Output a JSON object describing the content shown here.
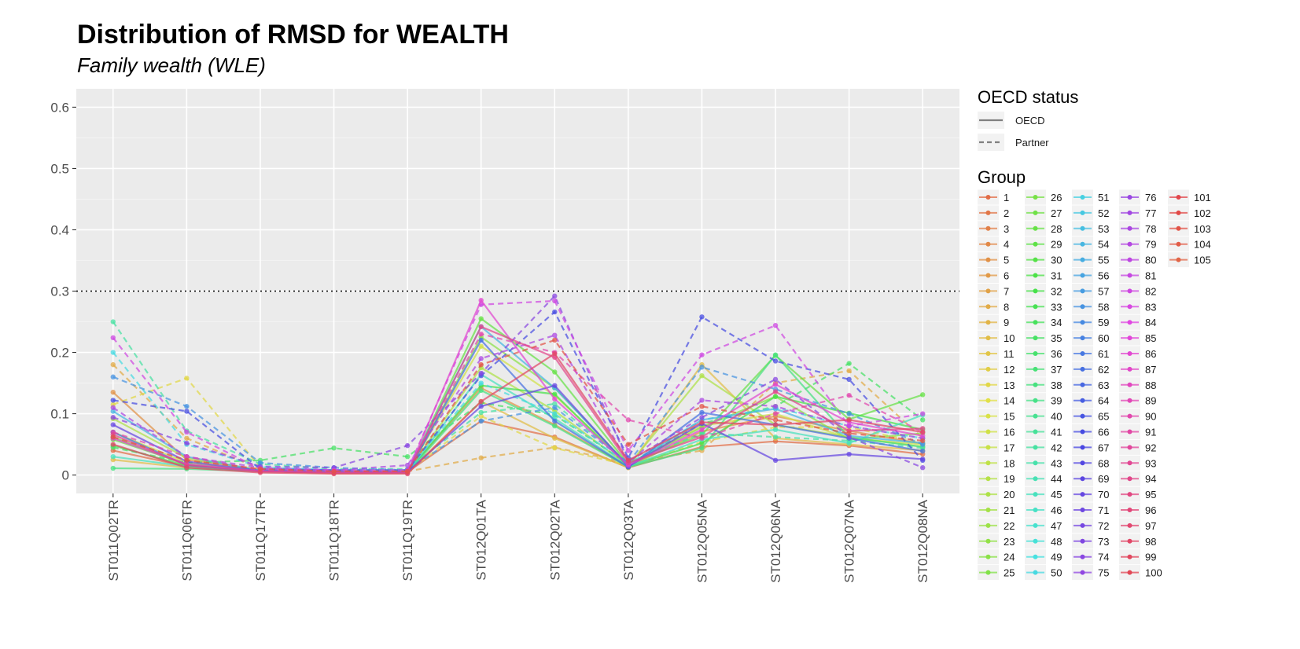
{
  "chart_data": {
    "type": "line",
    "title": "Distribution of RMSD for WEALTH",
    "subtitle": "Family wealth (WLE)",
    "xlabel": "",
    "ylabel": "",
    "categories": [
      "ST011Q02TR",
      "ST011Q06TR",
      "ST011Q17TR",
      "ST011Q18TR",
      "ST011Q19TR",
      "ST012Q01TA",
      "ST012Q02TA",
      "ST012Q03TA",
      "ST012Q05NA",
      "ST012Q06NA",
      "ST012Q07NA",
      "ST012Q08NA"
    ],
    "ylim": [
      -0.03,
      0.63
    ],
    "yticks": [
      0,
      0.1,
      0.2,
      0.3,
      0.4,
      0.5,
      0.6
    ],
    "ytick_labels": [
      "0",
      "0.1",
      "0.2",
      "0.3",
      "0.4",
      "0.5",
      "0.6"
    ],
    "reference_line": {
      "y": 0.3,
      "style": "dotted"
    },
    "grid": true,
    "legend_position": "right",
    "linetype_legend": {
      "title": "OECD status",
      "entries": [
        {
          "label": "OECD",
          "dash": "solid"
        },
        {
          "label": "Partner",
          "dash": "dashed"
        }
      ]
    },
    "group_legend_title": "Group",
    "groups": [
      "1",
      "2",
      "3",
      "4",
      "5",
      "6",
      "7",
      "8",
      "9",
      "10",
      "11",
      "12",
      "13",
      "14",
      "15",
      "16",
      "17",
      "18",
      "19",
      "20",
      "21",
      "22",
      "23",
      "24",
      "25",
      "26",
      "27",
      "28",
      "29",
      "30",
      "31",
      "32",
      "33",
      "34",
      "35",
      "36",
      "37",
      "38",
      "39",
      "40",
      "41",
      "42",
      "43",
      "44",
      "45",
      "46",
      "47",
      "48",
      "49",
      "50",
      "51",
      "52",
      "53",
      "54",
      "55",
      "56",
      "57",
      "58",
      "59",
      "60",
      "61",
      "62",
      "63",
      "64",
      "65",
      "66",
      "67",
      "68",
      "69",
      "70",
      "71",
      "72",
      "73",
      "74",
      "75",
      "76",
      "77",
      "78",
      "79",
      "80",
      "81",
      "82",
      "83",
      "84",
      "85",
      "86",
      "87",
      "88",
      "89",
      "90",
      "91",
      "92",
      "93",
      "94",
      "95",
      "96",
      "97",
      "98",
      "99",
      "100",
      "101",
      "102",
      "103",
      "104",
      "105"
    ],
    "series": [
      {
        "name": "1",
        "oecd": true,
        "values": [
          0.04,
          0.014,
          0.006,
          0.004,
          0.005,
          0.088,
          0.062,
          0.012,
          0.046,
          0.055,
          0.048,
          0.034
        ]
      },
      {
        "name": "5",
        "oecd": true,
        "values": [
          0.135,
          0.025,
          0.009,
          0.007,
          0.006,
          0.142,
          0.082,
          0.014,
          0.071,
          0.096,
          0.072,
          0.051
        ]
      },
      {
        "name": "8",
        "oecd": false,
        "values": [
          0.18,
          0.06,
          0.01,
          0.006,
          0.006,
          0.028,
          0.045,
          0.02,
          0.04,
          0.15,
          0.17,
          0.06
        ]
      },
      {
        "name": "10",
        "oecd": true,
        "values": [
          0.025,
          0.012,
          0.006,
          0.003,
          0.004,
          0.12,
          0.06,
          0.012,
          0.18,
          0.06,
          0.05,
          0.04
        ]
      },
      {
        "name": "13",
        "oecd": false,
        "values": [
          0.115,
          0.158,
          0.012,
          0.006,
          0.006,
          0.096,
          0.044,
          0.016,
          0.054,
          0.078,
          0.078,
          0.052
        ]
      },
      {
        "name": "16",
        "oecd": true,
        "values": [
          0.07,
          0.02,
          0.007,
          0.004,
          0.005,
          0.21,
          0.13,
          0.018,
          0.08,
          0.1,
          0.06,
          0.05
        ]
      },
      {
        "name": "20",
        "oecd": true,
        "values": [
          0.092,
          0.028,
          0.008,
          0.006,
          0.006,
          0.175,
          0.105,
          0.015,
          0.162,
          0.082,
          0.062,
          0.046
        ]
      },
      {
        "name": "24",
        "oecd": true,
        "values": [
          0.062,
          0.016,
          0.006,
          0.004,
          0.004,
          0.225,
          0.142,
          0.016,
          0.078,
          0.128,
          0.058,
          0.068
        ]
      },
      {
        "name": "28",
        "oecd": true,
        "values": [
          0.058,
          0.018,
          0.007,
          0.005,
          0.004,
          0.255,
          0.168,
          0.017,
          0.066,
          0.195,
          0.091,
          0.131
        ]
      },
      {
        "name": "32",
        "oecd": true,
        "values": [
          0.048,
          0.015,
          0.006,
          0.004,
          0.005,
          0.146,
          0.132,
          0.014,
          0.052,
          0.128,
          0.101,
          0.074
        ]
      },
      {
        "name": "35",
        "oecd": false,
        "values": [
          0.045,
          0.02,
          0.024,
          0.044,
          0.03,
          0.118,
          0.098,
          0.018,
          0.084,
          0.112,
          0.182,
          0.09
        ]
      },
      {
        "name": "38",
        "oecd": true,
        "values": [
          0.011,
          0.01,
          0.006,
          0.004,
          0.004,
          0.138,
          0.08,
          0.013,
          0.044,
          0.196,
          0.061,
          0.046
        ]
      },
      {
        "name": "42",
        "oecd": false,
        "values": [
          0.25,
          0.072,
          0.018,
          0.01,
          0.01,
          0.102,
          0.116,
          0.02,
          0.068,
          0.062,
          0.056,
          0.044
        ]
      },
      {
        "name": "45",
        "oecd": true,
        "values": [
          0.03,
          0.014,
          0.006,
          0.004,
          0.004,
          0.164,
          0.092,
          0.014,
          0.058,
          0.074,
          0.052,
          0.098
        ]
      },
      {
        "name": "50",
        "oecd": false,
        "values": [
          0.2,
          0.05,
          0.013,
          0.008,
          0.008,
          0.15,
          0.1,
          0.018,
          0.09,
          0.11,
          0.08,
          0.06
        ]
      },
      {
        "name": "54",
        "oecd": true,
        "values": [
          0.104,
          0.03,
          0.007,
          0.006,
          0.006,
          0.242,
          0.142,
          0.015,
          0.09,
          0.108,
          0.064,
          0.052
        ]
      },
      {
        "name": "58",
        "oecd": false,
        "values": [
          0.16,
          0.112,
          0.02,
          0.012,
          0.008,
          0.088,
          0.11,
          0.02,
          0.176,
          0.14,
          0.1,
          0.05
        ]
      },
      {
        "name": "62",
        "oecd": true,
        "values": [
          0.07,
          0.016,
          0.006,
          0.004,
          0.004,
          0.22,
          0.088,
          0.013,
          0.102,
          0.082,
          0.06,
          0.039
        ]
      },
      {
        "name": "66",
        "oecd": false,
        "values": [
          0.122,
          0.104,
          0.01,
          0.008,
          0.008,
          0.162,
          0.266,
          0.028,
          0.258,
          0.186,
          0.156,
          0.024
        ]
      },
      {
        "name": "70",
        "oecd": true,
        "values": [
          0.082,
          0.022,
          0.007,
          0.005,
          0.005,
          0.112,
          0.146,
          0.014,
          0.084,
          0.024,
          0.034,
          0.026
        ]
      },
      {
        "name": "74",
        "oecd": false,
        "values": [
          0.094,
          0.052,
          0.014,
          0.012,
          0.048,
          0.166,
          0.292,
          0.022,
          0.094,
          0.156,
          0.062,
          0.012
        ]
      },
      {
        "name": "78",
        "oecd": false,
        "values": [
          0.11,
          0.03,
          0.012,
          0.008,
          0.016,
          0.19,
          0.228,
          0.02,
          0.122,
          0.112,
          0.08,
          0.06
        ]
      },
      {
        "name": "82",
        "oecd": false,
        "values": [
          0.224,
          0.07,
          0.01,
          0.008,
          0.008,
          0.278,
          0.284,
          0.04,
          0.196,
          0.244,
          0.08,
          0.1
        ]
      },
      {
        "name": "86",
        "oecd": true,
        "values": [
          0.06,
          0.018,
          0.006,
          0.004,
          0.004,
          0.285,
          0.124,
          0.016,
          0.074,
          0.148,
          0.086,
          0.064
        ]
      },
      {
        "name": "90",
        "oecd": false,
        "values": [
          0.07,
          0.03,
          0.008,
          0.006,
          0.006,
          0.23,
          0.2,
          0.09,
          0.06,
          0.1,
          0.13,
          0.07
        ]
      },
      {
        "name": "94",
        "oecd": true,
        "values": [
          0.066,
          0.016,
          0.006,
          0.004,
          0.004,
          0.242,
          0.192,
          0.02,
          0.062,
          0.136,
          0.072,
          0.076
        ]
      },
      {
        "name": "98",
        "oecd": true,
        "values": [
          0.05,
          0.012,
          0.004,
          0.002,
          0.002,
          0.12,
          0.198,
          0.024,
          0.086,
          0.082,
          0.09,
          0.07
        ]
      },
      {
        "name": "103",
        "oecd": false,
        "values": [
          0.062,
          0.024,
          0.01,
          0.006,
          0.006,
          0.18,
          0.22,
          0.05,
          0.112,
          0.09,
          0.068,
          0.056
        ]
      }
    ]
  }
}
